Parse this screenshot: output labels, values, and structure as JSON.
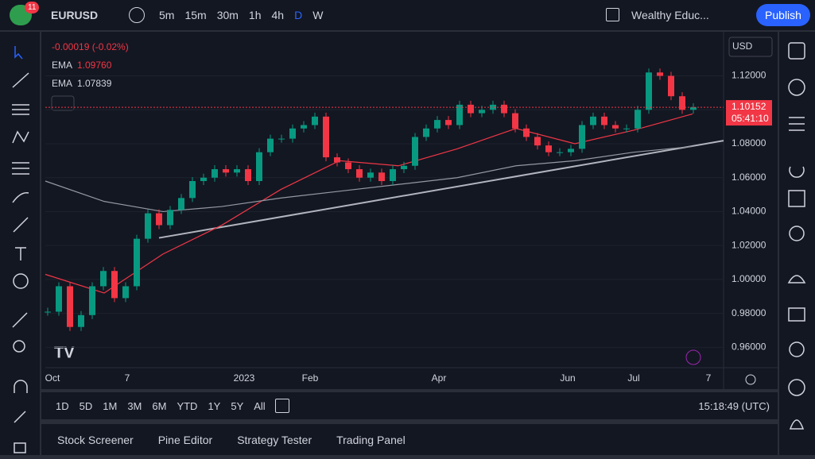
{
  "toolbar": {
    "badge": "11",
    "symbol": "EURUSD",
    "intervals": [
      "5m",
      "15m",
      "30m",
      "1h",
      "4h",
      "D",
      "W"
    ],
    "layout": "Wealthy Educ...",
    "publish": "Publish"
  },
  "legend": {
    "change": "-0.00019 (-0.02%)",
    "ema1_label": "EMA",
    "ema1_value": "1.09760",
    "ema2_label": "EMA",
    "ema2_value": "1.07839"
  },
  "currency": "USD",
  "price_tag": {
    "price": "1.10152",
    "countdown": "05:41:10"
  },
  "chart_data": {
    "type": "candlestick",
    "values": [
      0.981,
      0.996,
      0.972,
      0.979,
      0.996,
      1.005,
      0.989,
      0.996,
      1.024,
      1.039,
      1.032,
      1.041,
      1.048,
      1.058,
      1.06,
      1.065,
      1.063,
      1.065,
      1.058,
      1.075,
      1.083,
      1.083,
      1.089,
      1.091,
      1.096,
      1.072,
      1.069,
      1.065,
      1.06,
      1.063,
      1.058,
      1.065,
      1.067,
      1.084,
      1.089,
      1.094,
      1.091,
      1.103,
      1.098,
      1.1,
      1.103,
      1.098,
      1.089,
      1.084,
      1.079,
      1.075,
      1.075,
      1.077,
      1.091,
      1.096,
      1.091,
      1.089,
      1.089,
      1.1,
      1.122,
      1.12,
      1.108,
      1.1,
      1.1015
    ],
    "up_color": "#089981",
    "down_color": "#f23645",
    "series": [
      {
        "name": "EMA",
        "color": "#f23645",
        "values": [
          1.003,
          0.992,
          1.015,
          1.032,
          1.053,
          1.07,
          1.067,
          1.077,
          1.089,
          1.08,
          1.088,
          1.0976
        ]
      },
      {
        "name": "EMA",
        "color": "#9598a1",
        "values": [
          1.058,
          1.046,
          1.04,
          1.043,
          1.048,
          1.052,
          1.056,
          1.06,
          1.067,
          1.07,
          1.075,
          1.0784
        ]
      }
    ],
    "trendline": [
      1.0245,
      1.0818
    ],
    "ylim": [
      0.948,
      1.146
    ],
    "yticks": [
      {
        "value": 0.96,
        "label": "0.96000"
      },
      {
        "value": 0.98,
        "label": "0.98000"
      },
      {
        "value": 1.0,
        "label": "1.00000"
      },
      {
        "value": 1.02,
        "label": "1.02000"
      },
      {
        "value": 1.04,
        "label": "1.04000"
      },
      {
        "value": 1.06,
        "label": "1.06000"
      },
      {
        "value": 1.08,
        "label": "1.08000"
      },
      {
        "value": 1.1,
        "label": "1.10000"
      },
      {
        "value": 1.12,
        "label": "1.12000"
      }
    ],
    "x_labels": [
      "Oct",
      "7",
      "2023",
      "Feb",
      "Apr",
      "Jun",
      "Jul",
      "7"
    ]
  },
  "ranges": [
    "1D",
    "5D",
    "1M",
    "3M",
    "6M",
    "YTD",
    "1Y",
    "5Y",
    "All"
  ],
  "clock": "15:18:49 (UTC)",
  "panels": [
    "Stock Screener",
    "Pine Editor",
    "Strategy Tester",
    "Trading Panel"
  ]
}
